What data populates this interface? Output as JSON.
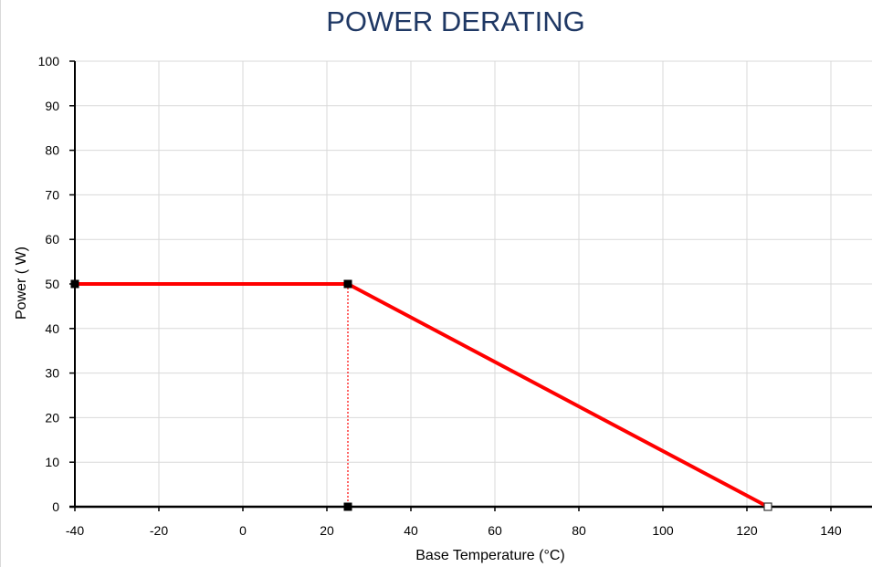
{
  "chart_data": {
    "type": "line",
    "title": "POWER DERATING",
    "xlabel": "Base Temperature  (°C)",
    "ylabel": "Power ( W)",
    "xlim": [
      -40,
      150
    ],
    "ylim": [
      0,
      100
    ],
    "x_ticks": [
      -40,
      -20,
      0,
      20,
      40,
      60,
      80,
      100,
      120,
      140
    ],
    "y_ticks": [
      0,
      10,
      20,
      30,
      40,
      50,
      60,
      70,
      80,
      90,
      100
    ],
    "grid": true,
    "series": [
      {
        "color": "#ff0000",
        "points": [
          {
            "x": -40,
            "y": 50
          },
          {
            "x": 25,
            "y": 50
          },
          {
            "x": 125,
            "y": 0
          }
        ]
      }
    ],
    "markers": [
      {
        "x": -40,
        "y": 50,
        "style": "filled-square"
      },
      {
        "x": 25,
        "y": 50,
        "style": "filled-square"
      },
      {
        "x": 25,
        "y": 0,
        "style": "filled-square"
      },
      {
        "x": 125,
        "y": 0,
        "style": "open-square"
      }
    ],
    "reference_lines": [
      {
        "x1": 25,
        "y1": 50,
        "x2": 25,
        "y2": 0,
        "style": "dotted",
        "color": "#ff0000"
      }
    ],
    "colors": {
      "title": "#1f3864",
      "grid": "#d9d9d9",
      "axis": "#000000",
      "marker": "#000000"
    }
  }
}
